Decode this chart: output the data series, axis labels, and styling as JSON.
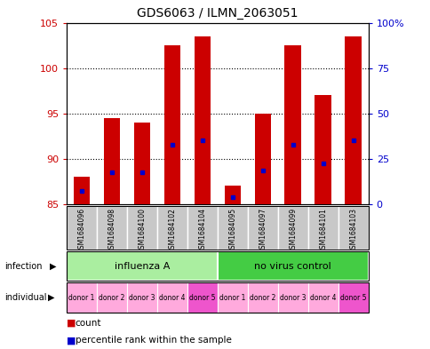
{
  "title": "GDS6063 / ILMN_2063051",
  "samples": [
    "GSM1684096",
    "GSM1684098",
    "GSM1684100",
    "GSM1684102",
    "GSM1684104",
    "GSM1684095",
    "GSM1684097",
    "GSM1684099",
    "GSM1684101",
    "GSM1684103"
  ],
  "bar_base": 85,
  "count_values": [
    88.0,
    94.5,
    94.0,
    102.5,
    103.5,
    87.0,
    95.0,
    102.5,
    97.0,
    103.5
  ],
  "percentile_values": [
    86.5,
    88.5,
    88.5,
    91.5,
    92.0,
    85.8,
    88.7,
    91.5,
    89.5,
    92.0
  ],
  "ylim_left": [
    85,
    105
  ],
  "ylim_right": [
    0,
    100
  ],
  "yticks_left": [
    85,
    90,
    95,
    100,
    105
  ],
  "yticks_right": [
    0,
    25,
    50,
    75,
    100
  ],
  "ytick_labels_right": [
    "0",
    "25",
    "50",
    "75",
    "100%"
  ],
  "infection_groups": [
    {
      "label": "influenza A",
      "start": 0,
      "end": 5,
      "color": "#AAEEA0"
    },
    {
      "label": "no virus control",
      "start": 5,
      "end": 10,
      "color": "#44CC44"
    }
  ],
  "individual_labels": [
    "donor 1",
    "donor 2",
    "donor 3",
    "donor 4",
    "donor 5",
    "donor 1",
    "donor 2",
    "donor 3",
    "donor 4",
    "donor 5"
  ],
  "individual_colors": [
    "#FFAADD",
    "#FFAADD",
    "#FFAADD",
    "#FFAADD",
    "#EE55CC",
    "#FFAADD",
    "#FFAADD",
    "#FFAADD",
    "#FFAADD",
    "#EE55CC"
  ],
  "bar_color": "#CC0000",
  "percentile_color": "#0000CC",
  "label_color_left": "#CC0000",
  "label_color_right": "#0000CC",
  "bar_width": 0.55,
  "sample_bg_color": "#C8C8C8"
}
